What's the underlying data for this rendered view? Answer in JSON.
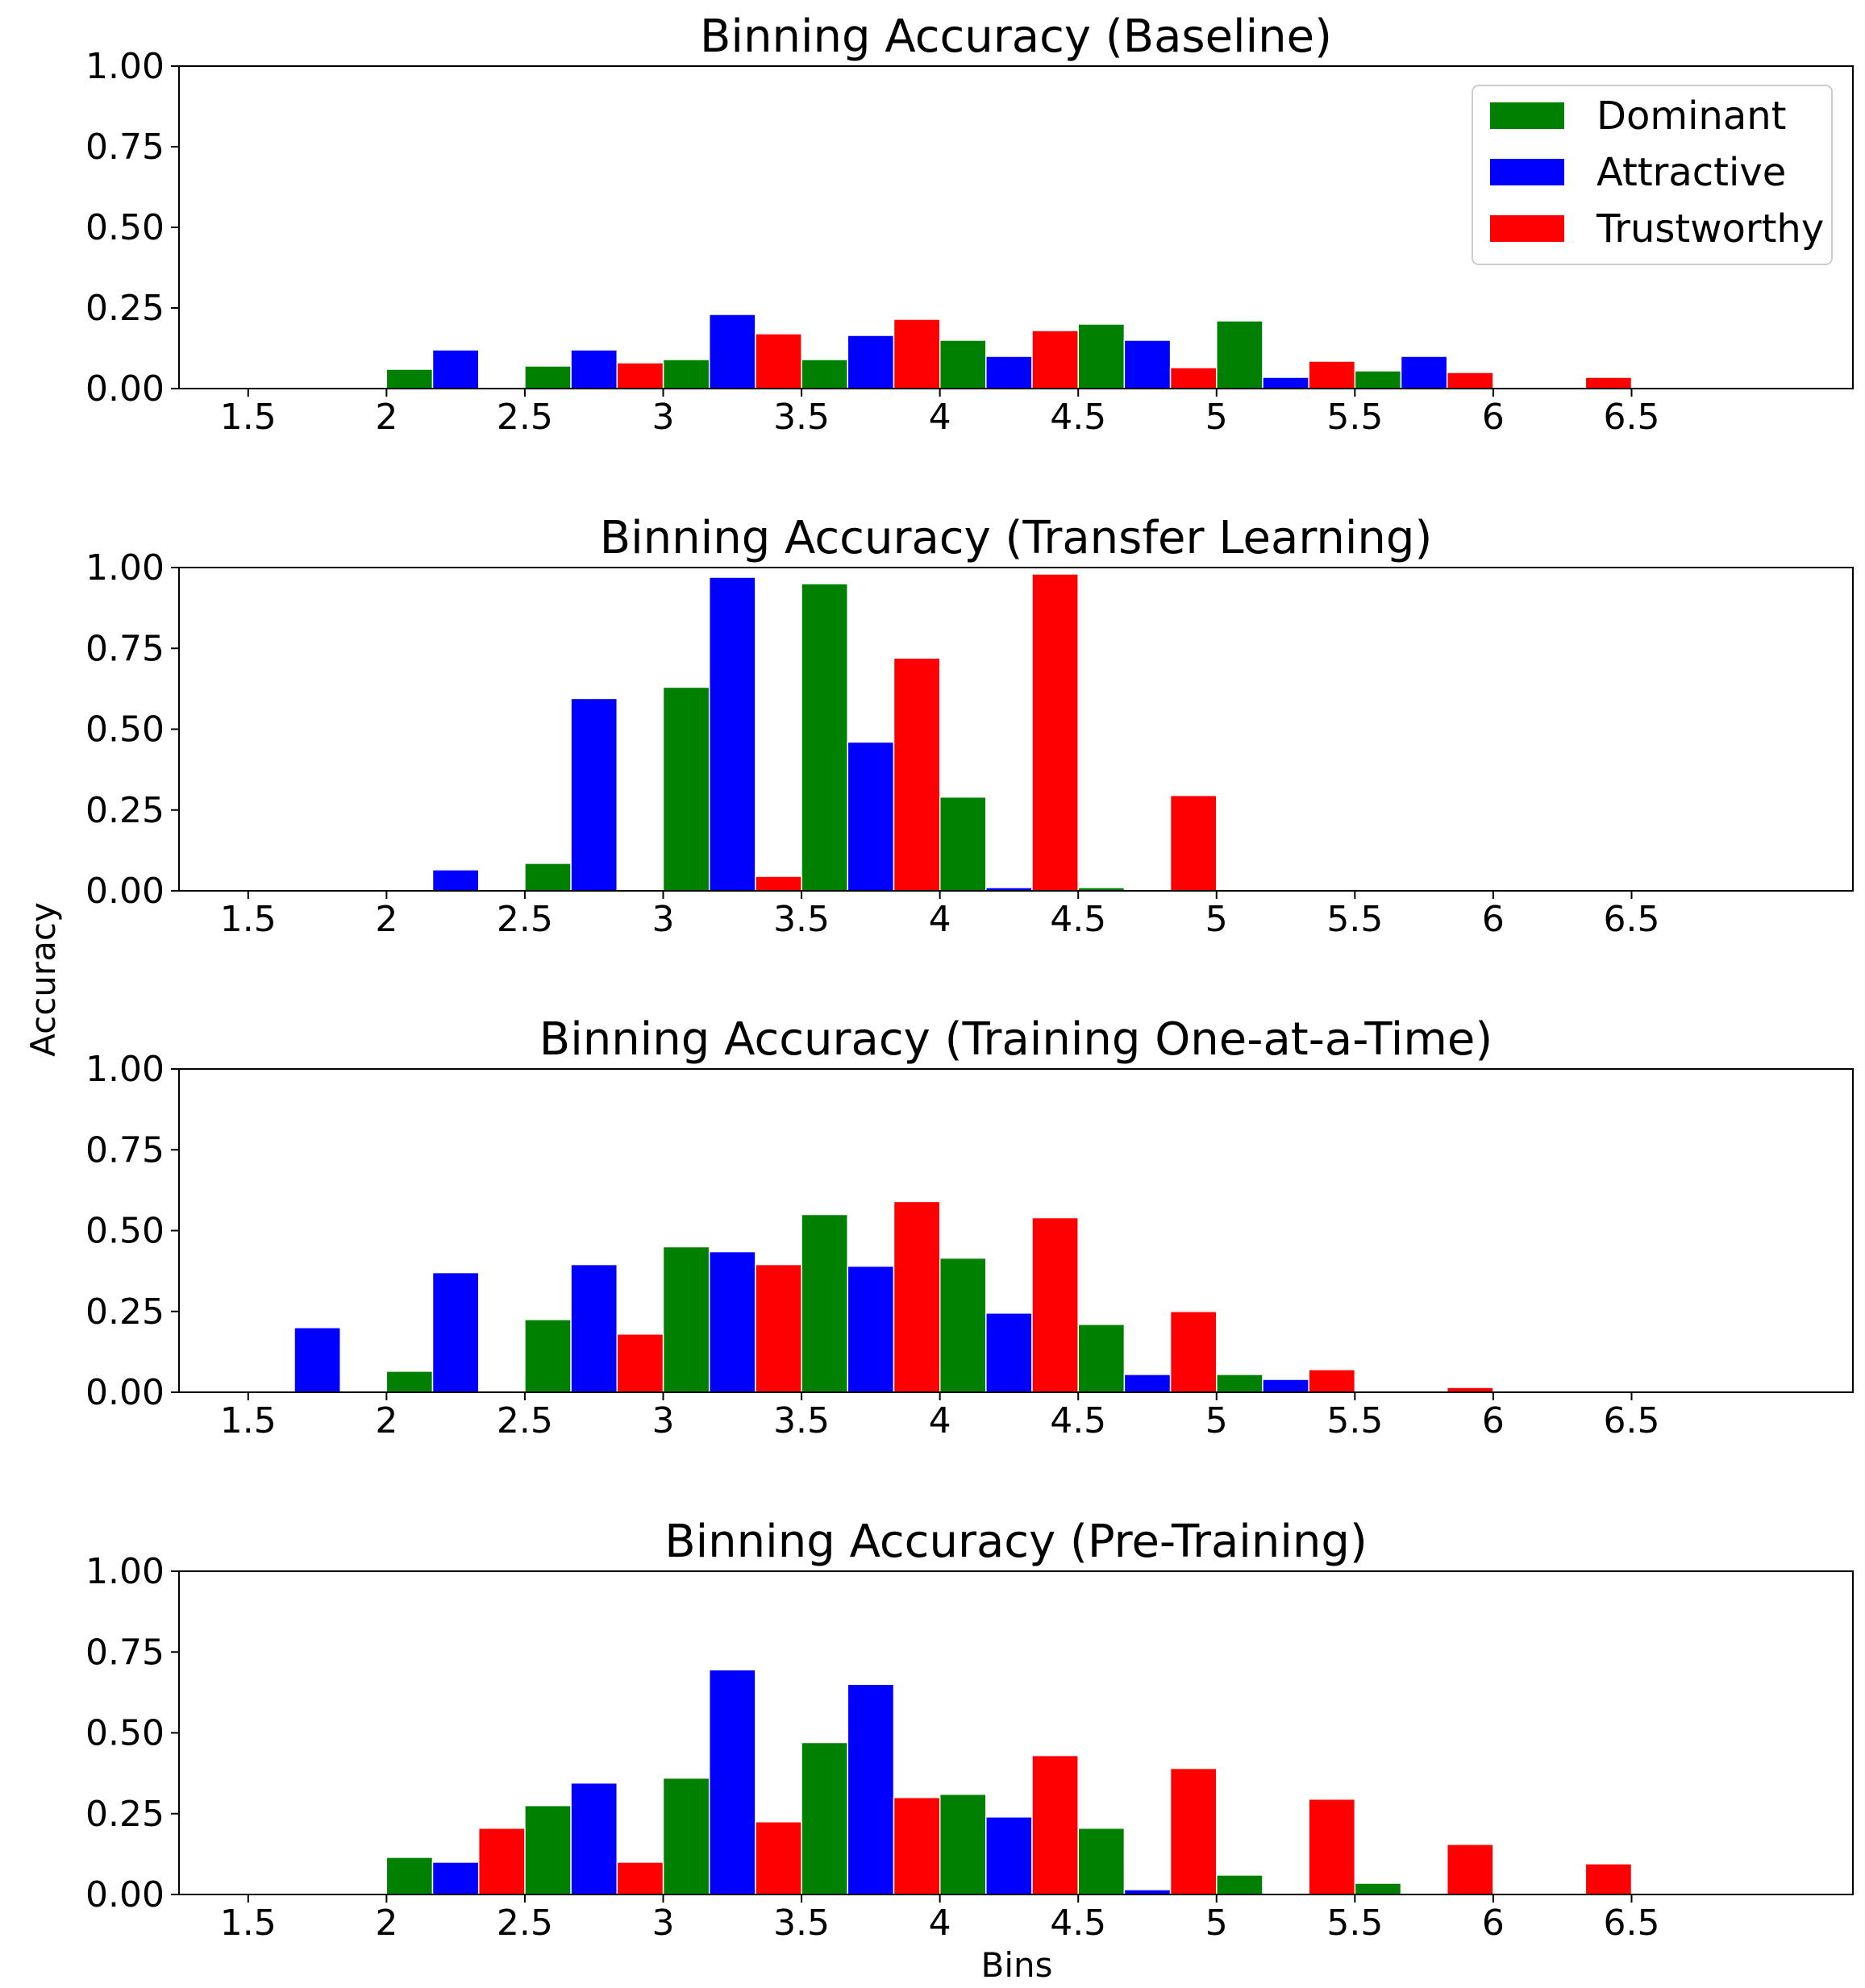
{
  "figure": {
    "ylabel": "Accuracy",
    "xlabel": "Bins"
  },
  "colors": {
    "Dominant": "#008000",
    "Attractive": "#0000ff",
    "Trustworthy": "#ff0000"
  },
  "chart_data": [
    {
      "type": "bar",
      "title": "Binning Accuracy (Baseline)",
      "xlabel": "",
      "ylabel": "",
      "xlim": [
        1.25,
        7.3
      ],
      "ylim": [
        0,
        1.0
      ],
      "yticks": [
        "0.00",
        "0.25",
        "0.50",
        "0.75",
        "1.00"
      ],
      "xticks": [
        "1.5",
        "2",
        "2.5",
        "3",
        "3.5",
        "4",
        "4.5",
        "5",
        "5.5",
        "6",
        "6.5"
      ],
      "bar_width": 0.1667,
      "legend": {
        "position": "top-right",
        "entries": [
          "Dominant",
          "Attractive",
          "Trustworthy"
        ]
      },
      "series": [
        {
          "name": "Dominant",
          "x": [
            2,
            2.5,
            3,
            3.5,
            4,
            4.5,
            5,
            5.5
          ],
          "values": [
            0.06,
            0.07,
            0.09,
            0.09,
            0.15,
            0.2,
            0.21,
            0.055
          ]
        },
        {
          "name": "Attractive",
          "x": [
            2,
            2.5,
            3,
            3.5,
            4,
            4.5,
            5,
            5.5
          ],
          "values": [
            0.12,
            0.12,
            0.23,
            0.165,
            0.1,
            0.15,
            0.035,
            0.1
          ]
        },
        {
          "name": "Trustworthy",
          "x": [
            2.5,
            3,
            3.5,
            4,
            4.5,
            5,
            5.5,
            6
          ],
          "values": [
            0.08,
            0.17,
            0.215,
            0.18,
            0.065,
            0.085,
            0.05,
            0.035
          ]
        }
      ]
    },
    {
      "type": "bar",
      "title": "Binning Accuracy (Transfer Learning)",
      "xlabel": "",
      "ylabel": "",
      "xlim": [
        1.25,
        7.3
      ],
      "ylim": [
        0,
        1.0
      ],
      "yticks": [
        "0.00",
        "0.25",
        "0.50",
        "0.75",
        "1.00"
      ],
      "xticks": [
        "1.5",
        "2",
        "2.5",
        "3",
        "3.5",
        "4",
        "4.5",
        "5",
        "5.5",
        "6",
        "6.5"
      ],
      "bar_width": 0.1667,
      "series": [
        {
          "name": "Dominant",
          "x": [
            2.5,
            3,
            3.5,
            4,
            4.5
          ],
          "values": [
            0.085,
            0.63,
            0.95,
            0.29,
            0.01
          ]
        },
        {
          "name": "Attractive",
          "x": [
            2,
            2.5,
            3,
            3.5,
            4
          ],
          "values": [
            0.065,
            0.595,
            0.97,
            0.46,
            0.01
          ]
        },
        {
          "name": "Trustworthy",
          "x": [
            3,
            3.5,
            4,
            4.5
          ],
          "values": [
            0.045,
            0.72,
            0.98,
            0.295
          ]
        }
      ]
    },
    {
      "type": "bar",
      "title": "Binning Accuracy (Training One-at-a-Time)",
      "xlabel": "",
      "ylabel": "",
      "xlim": [
        1.25,
        7.3
      ],
      "ylim": [
        0,
        1.0
      ],
      "yticks": [
        "0.00",
        "0.25",
        "0.50",
        "0.75",
        "1.00"
      ],
      "xticks": [
        "1.5",
        "2",
        "2.5",
        "3",
        "3.5",
        "4",
        "4.5",
        "5",
        "5.5",
        "6",
        "6.5"
      ],
      "bar_width": 0.1667,
      "series": [
        {
          "name": "Dominant",
          "x": [
            2,
            2.5,
            3,
            3.5,
            4,
            4.5,
            5
          ],
          "values": [
            0.065,
            0.225,
            0.45,
            0.55,
            0.415,
            0.21,
            0.055
          ]
        },
        {
          "name": "Attractive",
          "x": [
            1.5,
            2,
            2.5,
            3,
            3.5,
            4,
            4.5,
            5
          ],
          "values": [
            0.2,
            0.37,
            0.395,
            0.435,
            0.39,
            0.245,
            0.055,
            0.04
          ]
        },
        {
          "name": "Trustworthy",
          "x": [
            2.5,
            3,
            3.5,
            4,
            4.5,
            5,
            5.5
          ],
          "values": [
            0.18,
            0.395,
            0.59,
            0.54,
            0.25,
            0.07,
            0.015
          ]
        }
      ]
    },
    {
      "type": "bar",
      "title": "Binning Accuracy (Pre-Training)",
      "xlabel": "Bins",
      "ylabel": "",
      "xlim": [
        1.25,
        7.3
      ],
      "ylim": [
        0,
        1.0
      ],
      "yticks": [
        "0.00",
        "0.25",
        "0.50",
        "0.75",
        "1.00"
      ],
      "xticks": [
        "1.5",
        "2",
        "2.5",
        "3",
        "3.5",
        "4",
        "4.5",
        "5",
        "5.5",
        "6",
        "6.5"
      ],
      "bar_width": 0.1667,
      "series": [
        {
          "name": "Dominant",
          "x": [
            2,
            2.5,
            3,
            3.5,
            4,
            4.5,
            5,
            5.5
          ],
          "values": [
            0.115,
            0.275,
            0.36,
            0.47,
            0.31,
            0.205,
            0.06,
            0.035
          ]
        },
        {
          "name": "Attractive",
          "x": [
            2,
            2.5,
            3,
            3.5,
            4,
            4.5
          ],
          "values": [
            0.1,
            0.345,
            0.695,
            0.65,
            0.24,
            0.015
          ]
        },
        {
          "name": "Trustworthy",
          "x": [
            2,
            2.5,
            3,
            3.5,
            4,
            4.5,
            5,
            5.5,
            6
          ],
          "values": [
            0.205,
            0.1,
            0.225,
            0.3,
            0.43,
            0.39,
            0.295,
            0.155,
            0.095
          ]
        }
      ]
    }
  ]
}
